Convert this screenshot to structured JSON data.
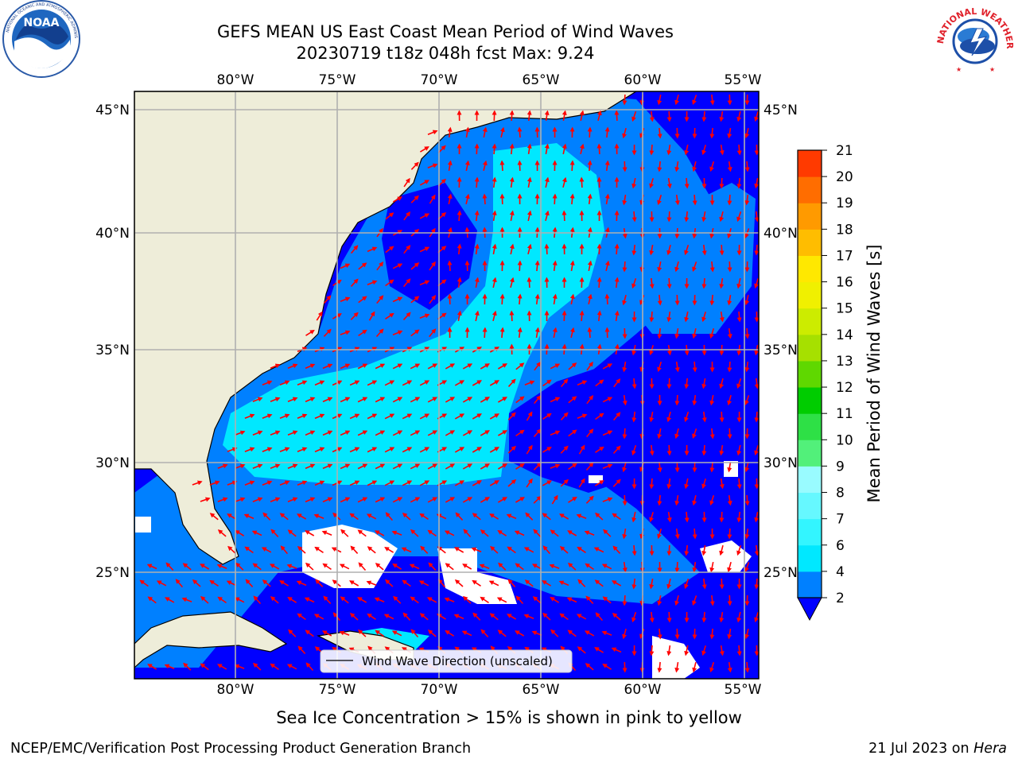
{
  "header": {
    "title_line1": "GEFS MEAN US East Coast Mean Period of Wind Waves",
    "title_line2": "20230719 t18z 048h fcst   Max: 9.24"
  },
  "logos": {
    "left": {
      "name": "NOAA",
      "text": "NOAA"
    },
    "right": {
      "name": "NATIONAL WEATHER SERVICE",
      "text": "NATIONAL WEATHER SERVICE"
    }
  },
  "map": {
    "lon_ticks": [
      "80°W",
      "75°W",
      "70°W",
      "65°W",
      "60°W",
      "55°W"
    ],
    "lat_ticks": [
      "45°N",
      "40°N",
      "35°N",
      "30°N",
      "25°N"
    ],
    "extent": {
      "lon_min": -85,
      "lon_max": -54.3,
      "lat_min": 20.5,
      "lat_max": 45.8
    },
    "colors": {
      "land": "#eeedd9",
      "coast": "#000000",
      "grid": "#b0b0b0",
      "arrow": "#ff0000",
      "nodata": "#ffffff"
    },
    "legend_label": "Wind Wave Direction (unscaled)"
  },
  "colorbar": {
    "label": "Mean Period of Wind Waves [s]",
    "ticks": [
      "2",
      "4",
      "6",
      "7",
      "8",
      "9",
      "10",
      "11",
      "12",
      "13",
      "14",
      "15",
      "16",
      "17",
      "18",
      "19",
      "20",
      "21"
    ],
    "colors": [
      "#0080ff",
      "#00e8ff",
      "#33f5ff",
      "#66f8ff",
      "#99fbff",
      "#52f07a",
      "#2ee046",
      "#00cc00",
      "#5fd800",
      "#a6e000",
      "#ccec00",
      "#f0f000",
      "#ffe800",
      "#ffbd00",
      "#ff9a00",
      "#ff6d00",
      "#ff3a00",
      "#ff0000"
    ],
    "extend_color": "#0000ff"
  },
  "note": "Sea Ice Concentration > 15% is shown in pink to yellow",
  "footer": {
    "left": "NCEP/EMC/Verification Post Processing Product Generation Branch",
    "right_date": "21 Jul 2023 on ",
    "right_host": "Hera"
  }
}
